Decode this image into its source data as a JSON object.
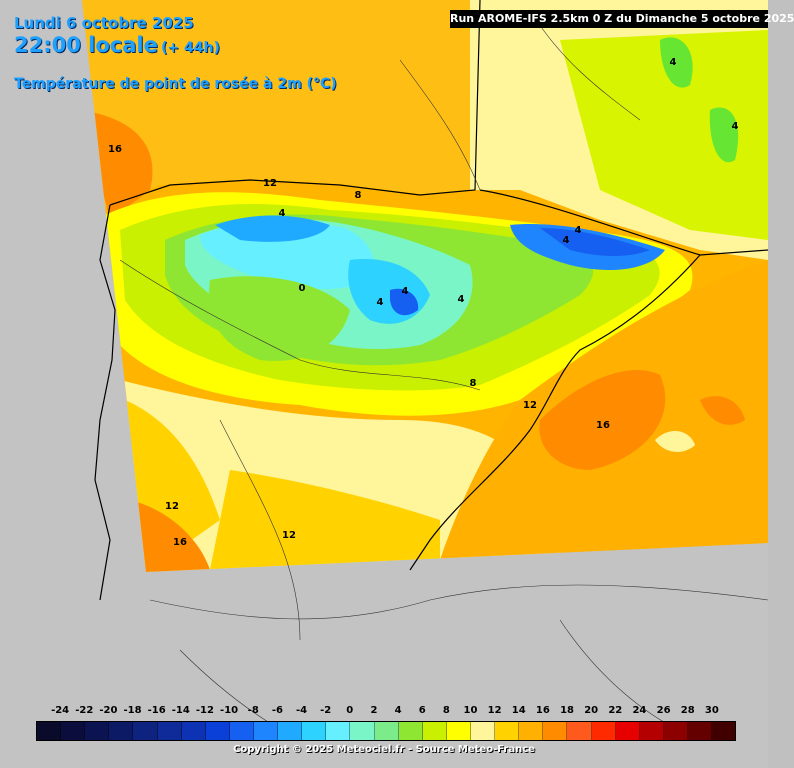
{
  "header": {
    "date": "Lundi 6 octobre 2025",
    "time": "22:00 locale",
    "lead": "(+ 44h)",
    "parameter": "Température de point de rosée à 2m (°C)"
  },
  "run_label": "Run AROME-IFS 2.5km 0 Z du Dimanche 5 octobre 2025",
  "contour_labels": [
    "16",
    "12",
    "8",
    "4",
    "0",
    "4",
    "4",
    "4",
    "4",
    "4",
    "8",
    "12",
    "16",
    "12",
    "16",
    "12",
    "4",
    "4"
  ],
  "legend": {
    "ticks": [
      "-24",
      "-22",
      "-20",
      "-18",
      "-16",
      "-14",
      "-12",
      "-10",
      "-8",
      "-6",
      "-4",
      "-2",
      "0",
      "2",
      "4",
      "6",
      "8",
      "10",
      "12",
      "14",
      "16",
      "18",
      "20",
      "22",
      "24",
      "26",
      "28",
      "30"
    ],
    "colors": [
      "#0a0a2a",
      "#0b0e3c",
      "#0b1450",
      "#0c1a66",
      "#0e2280",
      "#0f2a99",
      "#0d33b4",
      "#0b40d8",
      "#1560f0",
      "#1e85ff",
      "#20aaff",
      "#2ed2ff",
      "#66f0ff",
      "#7af5c8",
      "#7cec8a",
      "#8ee632",
      "#c8f000",
      "#ffff00",
      "#fff59a",
      "#ffd200",
      "#ffb000",
      "#ff8c00",
      "#ff5a1e",
      "#ff2a00",
      "#e60000",
      "#b40000",
      "#8c0000",
      "#640000",
      "#400000"
    ]
  },
  "copyright": "Copyright © 2025 Meteociel.fr - Source Meteo-France"
}
